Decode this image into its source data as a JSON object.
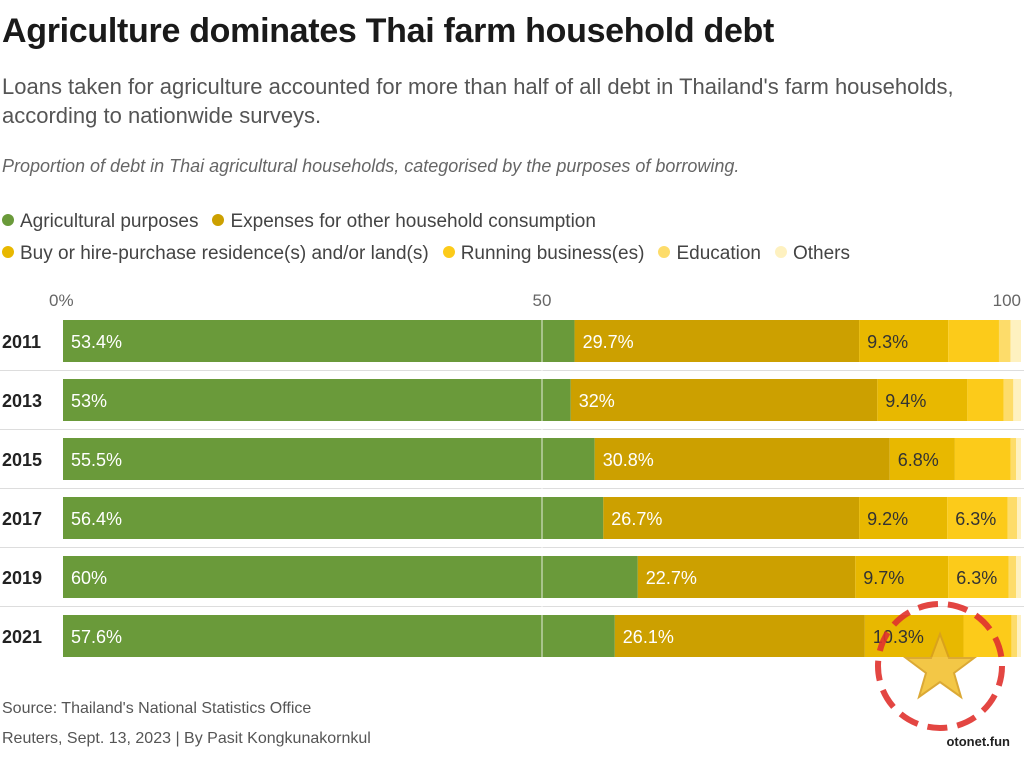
{
  "header": {
    "title": "Agriculture dominates Thai farm household debt",
    "subtitle": "Loans taken for agriculture accounted for more than half of all debt in Thailand's farm households, according to nationwide surveys.",
    "description": "Proportion of debt in Thai agricultural households, categorised by the purposes of borrowing."
  },
  "footer": {
    "source": "Source: Thailand's National Statistics Office",
    "credit": "Reuters, Sept. 13, 2023 | By Pasit Kongkunakornkul"
  },
  "watermark": {
    "text": "otonet.fun",
    "icon": "star-icon"
  },
  "chart_data": {
    "type": "bar",
    "orientation": "horizontal",
    "stacked": true,
    "categories": [
      "2011",
      "2013",
      "2015",
      "2017",
      "2019",
      "2021"
    ],
    "xlim": [
      0,
      100
    ],
    "x_ticks": [
      {
        "value": 0,
        "label": "0%"
      },
      {
        "value": 50,
        "label": "50"
      },
      {
        "value": 100,
        "label": "100"
      }
    ],
    "grid": true,
    "legend_position": "top-left",
    "series": [
      {
        "name": "Agricultural purposes",
        "color": "#6a9a3a",
        "label_color": "#ffffff",
        "values": [
          53.4,
          53,
          55.5,
          56.4,
          60,
          57.6
        ],
        "labels": [
          "53.4%",
          "53%",
          "55.5%",
          "56.4%",
          "60%",
          "57.6%"
        ]
      },
      {
        "name": "Expenses for other household consumption",
        "color": "#cca000",
        "label_color": "#ffffff",
        "values": [
          29.7,
          32,
          30.8,
          26.7,
          22.7,
          26.1
        ],
        "labels": [
          "29.7%",
          "32%",
          "30.8%",
          "26.7%",
          "22.7%",
          "26.1%"
        ]
      },
      {
        "name": "Buy or hire-purchase residence(s) and/or land(s)",
        "color": "#e8b800",
        "label_color": "#333333",
        "values": [
          9.3,
          9.4,
          6.8,
          9.2,
          9.7,
          10.3
        ],
        "labels": [
          "9.3%",
          "9.4%",
          "6.8%",
          "9.2%",
          "9.7%",
          "10.3%"
        ]
      },
      {
        "name": "Running business(es)",
        "color": "#fccb1a",
        "label_color": "#333333",
        "values": [
          5.3,
          3.8,
          5.8,
          6.3,
          6.3,
          5.0
        ],
        "labels": [
          "",
          "",
          "",
          "6.3%",
          "6.3%",
          ""
        ]
      },
      {
        "name": "Education",
        "color": "#fddc6a",
        "label_color": "#333333",
        "values": [
          1.2,
          1.0,
          0.6,
          1.0,
          0.8,
          0.6
        ],
        "labels": [
          "",
          "",
          "",
          "",
          "",
          ""
        ]
      },
      {
        "name": "Others",
        "color": "#fef1c0",
        "label_color": "#333333",
        "values": [
          1.1,
          0.8,
          0.5,
          0.4,
          0.5,
          0.4
        ],
        "labels": [
          "",
          "",
          "",
          "",
          "",
          ""
        ]
      }
    ]
  }
}
